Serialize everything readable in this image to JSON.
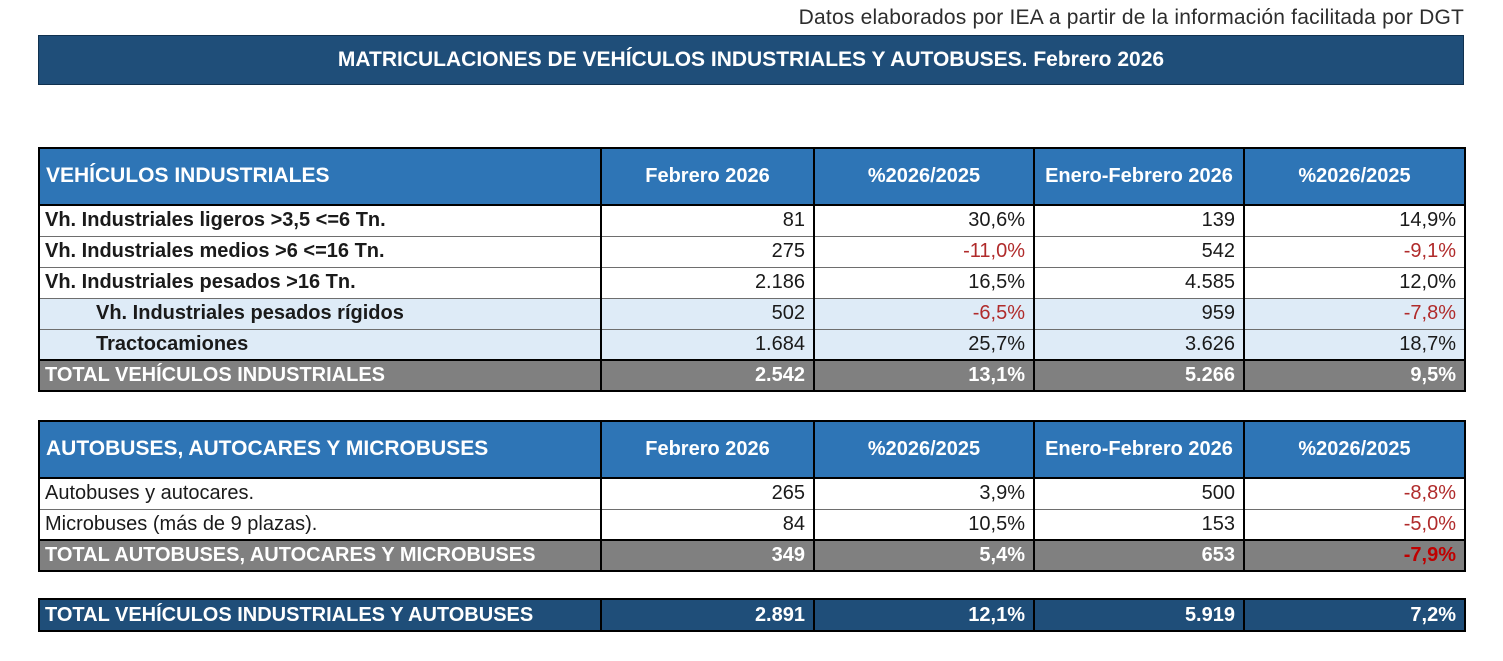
{
  "source_note": "Datos elaborados por IEA a partir de la información facilitada por DGT",
  "title": "MATRICULACIONES DE VEHÍCULOS INDUSTRIALES Y AUTOBUSES.  Febrero 2026",
  "colors": {
    "dark_blue": "#1F4E79",
    "header_blue": "#2E75B6",
    "light_blue_row": "#DEEBF7",
    "total_gray": "#808080",
    "negative_red": "#B02B2B",
    "white": "#FFFFFF"
  },
  "columns": {
    "month": "Febrero 2026",
    "pct_month": "%2026/2025",
    "ytd": "Enero-Febrero 2026",
    "pct_ytd": "%2026/2025"
  },
  "industrial": {
    "header": "VEHÍCULOS INDUSTRIALES",
    "rows": [
      {
        "label": "Vh. Industriales ligeros >3,5 <=6 Tn.",
        "v1": "81",
        "v2": "30,6%",
        "v3": "139",
        "v4": "14,9%"
      },
      {
        "label": "Vh. Industriales medios >6  <=16 Tn.",
        "v1": "275",
        "v2": "-11,0%",
        "v3": "542",
        "v4": "-9,1%"
      },
      {
        "label": "Vh. Industriales  pesados >16 Tn.",
        "v1": "2.186",
        "v2": "16,5%",
        "v3": "4.585",
        "v4": "12,0%"
      },
      {
        "label": "Vh. Industriales pesados rígidos",
        "v1": "502",
        "v2": "-6,5%",
        "v3": "959",
        "v4": "-7,8%"
      },
      {
        "label": "Tractocamiones",
        "v1": "1.684",
        "v2": "25,7%",
        "v3": "3.626",
        "v4": "18,7%"
      }
    ],
    "total": {
      "label": "TOTAL VEHÍCULOS INDUSTRIALES",
      "v1": "2.542",
      "v2": "13,1%",
      "v3": "5.266",
      "v4": "9,5%"
    }
  },
  "buses": {
    "header": "AUTOBUSES, AUTOCARES Y MICROBUSES",
    "rows": [
      {
        "label": "Autobuses y autocares.",
        "v1": "265",
        "v2": "3,9%",
        "v3": "500",
        "v4": "-8,8%"
      },
      {
        "label": "Microbuses (más de 9 plazas).",
        "v1": "84",
        "v2": "10,5%",
        "v3": "153",
        "v4": "-5,0%"
      }
    ],
    "total": {
      "label": "TOTAL AUTOBUSES, AUTOCARES Y MICROBUSES",
      "v1": "349",
      "v2": "5,4%",
      "v3": "653",
      "v4": "-7,9%"
    }
  },
  "grand_total": {
    "label": "TOTAL VEHÍCULOS INDUSTRIALES Y AUTOBUSES",
    "v1": "2.891",
    "v2": "12,1%",
    "v3": "5.919",
    "v4": "7,2%"
  }
}
